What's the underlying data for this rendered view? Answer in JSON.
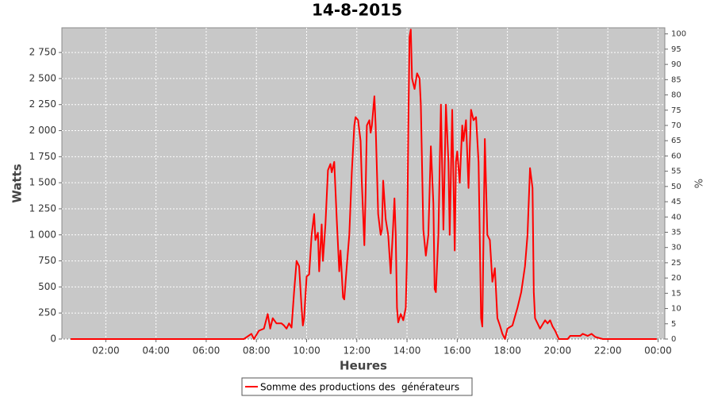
{
  "chart_data": {
    "type": "line",
    "title": "14-8-2015",
    "xlabel": "Heures",
    "ylabel": "Watts",
    "y2label": "%",
    "xlim": [
      0.25,
      24.27
    ],
    "ylim": [
      0,
      2987
    ],
    "y2lim": [
      0,
      102
    ],
    "xticks": [
      {
        "value": 2,
        "label": "02:00"
      },
      {
        "value": 4,
        "label": "04:00"
      },
      {
        "value": 6,
        "label": "06:00"
      },
      {
        "value": 8,
        "label": "08:00"
      },
      {
        "value": 10,
        "label": "10:00"
      },
      {
        "value": 12,
        "label": "12:00"
      },
      {
        "value": 14,
        "label": "14:00"
      },
      {
        "value": 16,
        "label": "16:00"
      },
      {
        "value": 18,
        "label": "18:00"
      },
      {
        "value": 20,
        "label": "20:00"
      },
      {
        "value": 22,
        "label": "22:00"
      },
      {
        "value": 24,
        "label": "00:00"
      }
    ],
    "yticks": [
      0,
      250,
      500,
      750,
      {
        "value": 1000,
        "label": "1 000"
      },
      {
        "value": 1250,
        "label": "1 250"
      },
      {
        "value": 1500,
        "label": "1 500"
      },
      {
        "value": 1750,
        "label": "1 750"
      },
      {
        "value": 2000,
        "label": "2 000"
      },
      {
        "value": 2250,
        "label": "2 250"
      },
      {
        "value": 2500,
        "label": "2 500"
      },
      {
        "value": 2750,
        "label": "2 750"
      }
    ],
    "y2ticks": [
      0,
      5,
      10,
      15,
      20,
      25,
      30,
      35,
      40,
      45,
      50,
      55,
      60,
      65,
      70,
      75,
      80,
      85,
      90,
      95,
      100
    ],
    "grid": true,
    "legend": "bottom",
    "x": [
      0.6,
      7.5,
      7.8,
      7.9,
      8.1,
      8.3,
      8.45,
      8.55,
      8.65,
      8.8,
      9.0,
      9.1,
      9.2,
      9.3,
      9.4,
      9.5,
      9.6,
      9.7,
      9.8,
      9.85,
      9.9,
      10.0,
      10.1,
      10.2,
      10.3,
      10.35,
      10.45,
      10.5,
      10.6,
      10.65,
      10.75,
      10.85,
      10.95,
      11.0,
      11.1,
      11.2,
      11.3,
      11.35,
      11.45,
      11.5,
      11.6,
      11.7,
      11.8,
      11.9,
      11.95,
      12.05,
      12.15,
      12.2,
      12.3,
      12.35,
      12.4,
      12.5,
      12.55,
      12.6,
      12.7,
      12.75,
      12.85,
      12.95,
      13.0,
      13.05,
      13.15,
      13.25,
      13.35,
      13.45,
      13.5,
      13.55,
      13.6,
      13.65,
      13.75,
      13.85,
      13.95,
      14.0,
      14.05,
      14.1,
      14.15,
      14.2,
      14.3,
      14.4,
      14.5,
      14.55,
      14.65,
      14.75,
      14.85,
      14.95,
      15.05,
      15.1,
      15.15,
      15.25,
      15.35,
      15.45,
      15.55,
      15.65,
      15.7,
      15.8,
      15.9,
      15.95,
      16.0,
      16.1,
      16.2,
      16.25,
      16.35,
      16.45,
      16.55,
      16.65,
      16.75,
      16.85,
      16.95,
      17.0,
      17.1,
      17.2,
      17.3,
      17.4,
      17.5,
      17.6,
      17.7,
      17.8,
      17.9,
      18.0,
      18.2,
      18.4,
      18.55,
      18.7,
      18.8,
      18.9,
      19.0,
      19.05,
      19.1,
      19.3,
      19.5,
      19.6,
      19.7,
      19.8,
      19.9,
      20.05,
      20.4,
      20.5,
      20.9,
      21.0,
      21.2,
      21.35,
      21.5,
      21.8,
      23.95
    ],
    "series": [
      {
        "name": "Somme des productions des  générateurs",
        "color": "#ff0000",
        "values": [
          0,
          0,
          50,
          0,
          80,
          100,
          240,
          100,
          200,
          150,
          150,
          130,
          100,
          150,
          110,
          450,
          750,
          700,
          300,
          130,
          200,
          600,
          620,
          1000,
          1200,
          950,
          1020,
          650,
          1100,
          750,
          1100,
          1620,
          1680,
          1600,
          1700,
          1150,
          650,
          850,
          400,
          380,
          700,
          1000,
          1600,
          2050,
          2130,
          2100,
          1900,
          1500,
          900,
          1400,
          2050,
          2100,
          1980,
          2050,
          2330,
          2050,
          1200,
          1000,
          1050,
          1520,
          1150,
          1000,
          630,
          1100,
          1350,
          1000,
          300,
          160,
          240,
          180,
          300,
          820,
          2000,
          2900,
          2970,
          2500,
          2400,
          2550,
          2500,
          2250,
          1050,
          800,
          1000,
          1850,
          1300,
          480,
          450,
          1000,
          2250,
          1050,
          2250,
          1700,
          1000,
          2200,
          850,
          1700,
          1800,
          1500,
          2050,
          1900,
          2100,
          1450,
          2200,
          2100,
          2130,
          1700,
          200,
          120,
          1920,
          1000,
          950,
          550,
          680,
          200,
          130,
          50,
          0,
          100,
          130,
          300,
          450,
          700,
          1000,
          1640,
          1450,
          450,
          200,
          100,
          180,
          150,
          180,
          120,
          80,
          0,
          0,
          30,
          30,
          50,
          30,
          50,
          20,
          0,
          0
        ]
      }
    ]
  }
}
